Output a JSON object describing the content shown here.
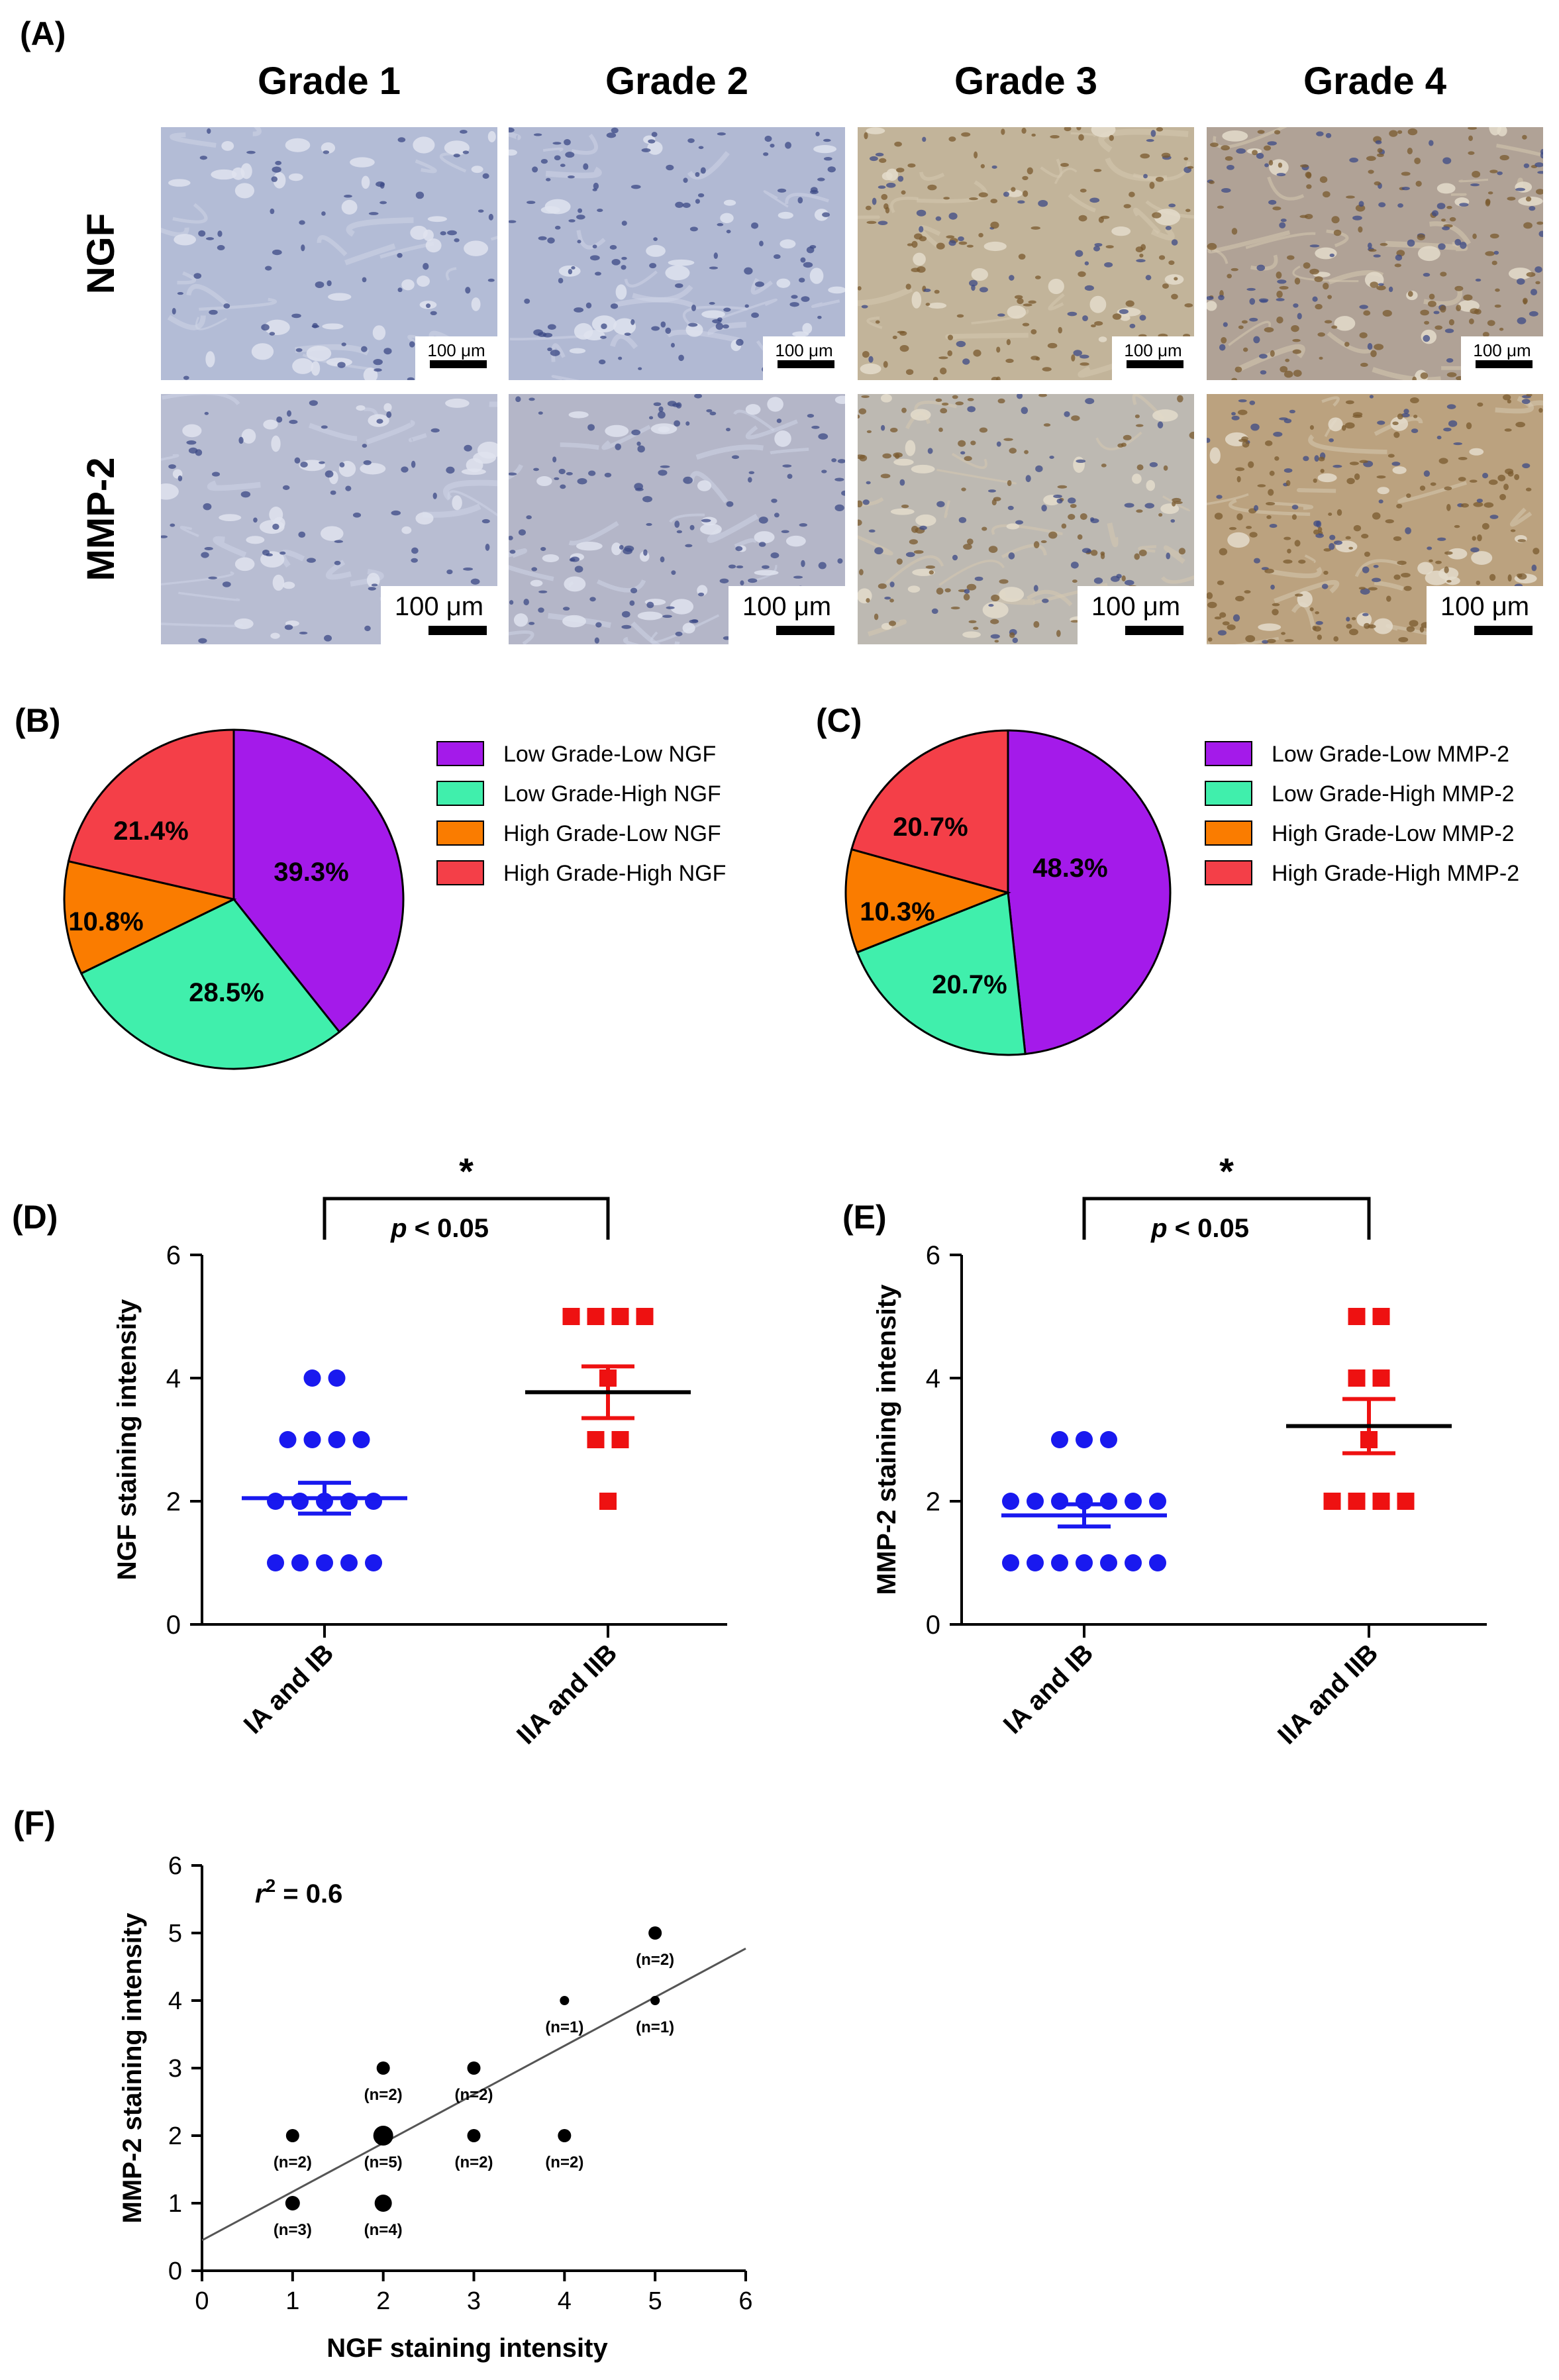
{
  "panel_labels": {
    "a": "(A)",
    "b": "(B)",
    "c": "(C)",
    "d": "(D)",
    "e": "(E)",
    "f": "(F)"
  },
  "micrographs": {
    "columns": [
      "Grade 1",
      "Grade 2",
      "Grade 3",
      "Grade 4"
    ],
    "rows": [
      "NGF",
      "MMP-2"
    ],
    "scale_bar": "100 μm",
    "tint": {
      "NGF": [
        "#b3bcd6",
        "#b1b9d3",
        "#c2b49a",
        "#b0a296"
      ],
      "MMP-2": [
        "#b8bdd2",
        "#b4b6c8",
        "#bdb9b2",
        "#bba27f"
      ]
    }
  },
  "colors": {
    "purple": "#a41aea",
    "green": "#40efac",
    "orange": "#fa7c00",
    "red": "#f43f48",
    "blue": "#1919ef",
    "bright_red": "#ee1111",
    "black": "#000000"
  },
  "chart_data": [
    {
      "type": "pie",
      "title": "(B)",
      "labels": [
        "Low Grade-Low NGF",
        "Low Grade-High NGF",
        "High Grade-Low NGF",
        "High Grade-High NGF"
      ],
      "values": [
        39.3,
        28.5,
        10.8,
        21.4
      ],
      "display": [
        "39.3%",
        "28.5%",
        "10.8%",
        "21.4%"
      ],
      "colors": [
        "#a41aea",
        "#40efac",
        "#fa7c00",
        "#f43f48"
      ],
      "legend_position": "right"
    },
    {
      "type": "pie",
      "title": "(C)",
      "labels": [
        "Low Grade-Low MMP-2",
        "Low Grade-High MMP-2",
        "High Grade-Low MMP-2",
        "High Grade-High MMP-2"
      ],
      "values": [
        48.3,
        20.7,
        10.3,
        20.7
      ],
      "display": [
        "48.3%",
        "20.7%",
        "10.3%",
        "20.7%"
      ],
      "colors": [
        "#a41aea",
        "#40efac",
        "#fa7c00",
        "#f43f48"
      ],
      "legend_position": "right"
    },
    {
      "type": "scatter",
      "title": "(D)",
      "ylabel": "NGF staining intensity",
      "categories": [
        "IA and IB",
        "IIA and IIB"
      ],
      "ylim": [
        0,
        6
      ],
      "yticks": [
        0,
        2,
        4,
        6
      ],
      "significance": {
        "star": "*",
        "p_prefix": "p",
        "p_text": " < 0.05"
      },
      "groups": [
        {
          "name": "IA and IB",
          "mean": 2.05,
          "sem": 0.25,
          "marker": "circle",
          "color": "#1919ef",
          "points": [
            {
              "y": 4,
              "n": 2
            },
            {
              "y": 3,
              "n": 4
            },
            {
              "y": 2,
              "n": 5
            },
            {
              "y": 1,
              "n": 5
            }
          ]
        },
        {
          "name": "IIA and IIB",
          "mean": 3.77,
          "sem": 0.42,
          "marker": "square",
          "color": "#ee1111",
          "points": [
            {
              "y": 5,
              "n": 4
            },
            {
              "y": 4,
              "n": 1
            },
            {
              "y": 3,
              "n": 2
            },
            {
              "y": 2,
              "n": 1
            }
          ]
        }
      ]
    },
    {
      "type": "scatter",
      "title": "(E)",
      "ylabel": "MMP-2 staining intensity",
      "categories": [
        "IA and IB",
        "IIA and IIB"
      ],
      "ylim": [
        0,
        6
      ],
      "yticks": [
        0,
        2,
        4,
        6
      ],
      "significance": {
        "star": "*",
        "p_prefix": "p",
        "p_text": " < 0.05"
      },
      "groups": [
        {
          "name": "IA and IB",
          "mean": 1.77,
          "sem": 0.18,
          "marker": "circle",
          "color": "#1919ef",
          "points": [
            {
              "y": 3,
              "n": 3
            },
            {
              "y": 2,
              "n": 7
            },
            {
              "y": 1,
              "n": 7
            }
          ]
        },
        {
          "name": "IIA and IIB",
          "mean": 3.22,
          "sem": 0.44,
          "marker": "square",
          "color": "#ee1111",
          "points": [
            {
              "y": 5,
              "n": 2
            },
            {
              "y": 4,
              "n": 2
            },
            {
              "y": 3,
              "n": 1
            },
            {
              "y": 2,
              "n": 4
            }
          ]
        }
      ]
    },
    {
      "type": "scatter",
      "title": "(F)",
      "xlabel": "NGF staining intensity",
      "ylabel": "MMP-2 staining intensity",
      "xlim": [
        0,
        6
      ],
      "ylim": [
        0,
        6
      ],
      "xticks": [
        0,
        1,
        2,
        3,
        4,
        5,
        6
      ],
      "yticks": [
        0,
        1,
        2,
        3,
        4,
        5,
        6
      ],
      "r2_text": "= 0.6",
      "regression": {
        "intercept": 0.45,
        "slope": 0.72
      },
      "points": [
        {
          "x": 1,
          "y": 2,
          "n": 2,
          "label": "(n=2)"
        },
        {
          "x": 1,
          "y": 1,
          "n": 3,
          "label": "(n=3)"
        },
        {
          "x": 2,
          "y": 3,
          "n": 2,
          "label": "(n=2)"
        },
        {
          "x": 2,
          "y": 2,
          "n": 5,
          "label": "(n=5)"
        },
        {
          "x": 2,
          "y": 1,
          "n": 4,
          "label": "(n=4)"
        },
        {
          "x": 3,
          "y": 3,
          "n": 2,
          "label": "(n=2)"
        },
        {
          "x": 3,
          "y": 2,
          "n": 2,
          "label": "(n=2)"
        },
        {
          "x": 4,
          "y": 4,
          "n": 1,
          "label": "(n=1)"
        },
        {
          "x": 4,
          "y": 2,
          "n": 2,
          "label": "(n=2)"
        },
        {
          "x": 5,
          "y": 5,
          "n": 2,
          "label": "(n=2)"
        },
        {
          "x": 5,
          "y": 4,
          "n": 1,
          "label": "(n=1)"
        }
      ]
    }
  ]
}
